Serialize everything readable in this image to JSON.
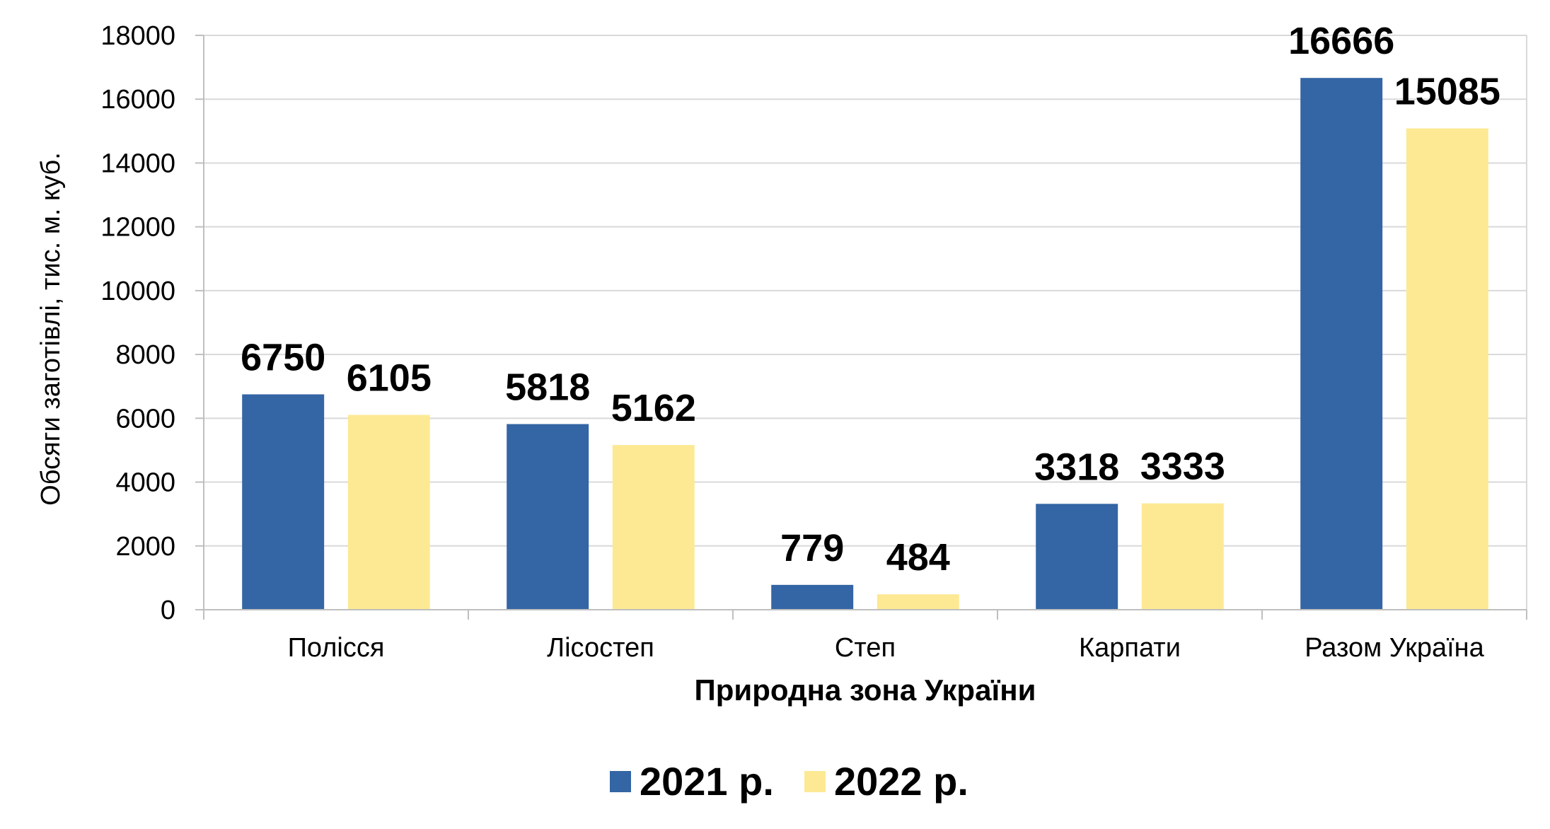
{
  "chart_data": {
    "type": "bar",
    "categories": [
      "Полісся",
      "Лісостеп",
      "Степ",
      "Карпати",
      "Разом Україна"
    ],
    "series": [
      {
        "name": "2021 р.",
        "values": [
          6750,
          5818,
          779,
          3318,
          16666
        ],
        "color": "#3465A4"
      },
      {
        "name": "2022 р.",
        "values": [
          6105,
          5162,
          484,
          3333,
          15085
        ],
        "color": "#FDE993"
      }
    ],
    "xlabel": "Природна зона України",
    "ylabel": "Обсяги заготівлі, тис. м. куб.",
    "ylim": [
      0,
      18000
    ],
    "yticks": [
      0,
      2000,
      4000,
      6000,
      8000,
      10000,
      12000,
      14000,
      16000,
      18000
    ],
    "grid": true,
    "legend": "bottom-center",
    "gridColor": "#D9D9D9",
    "axisColor": "#BFBFBF"
  }
}
